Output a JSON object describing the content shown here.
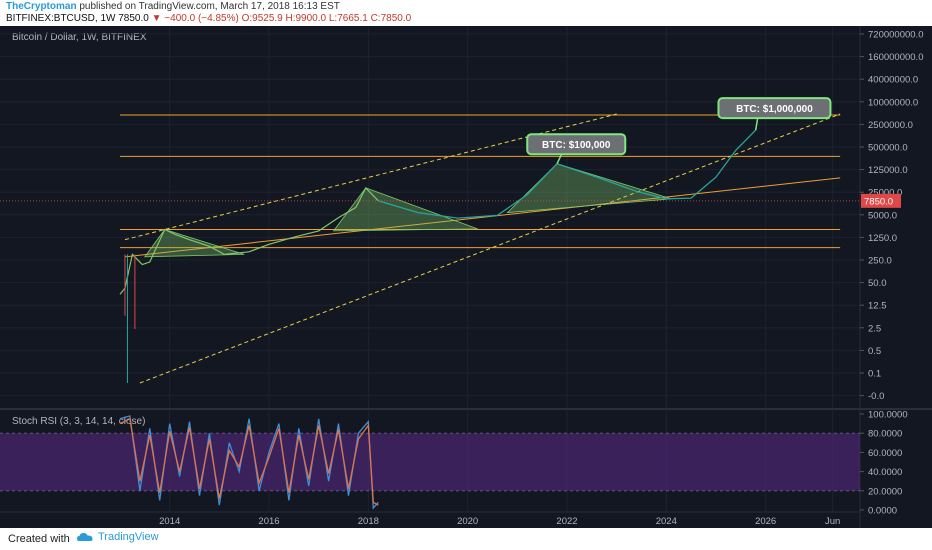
{
  "header": {
    "author": "TheCryptoman",
    "published": "published on TradingView.com, March 17, 2018 16:13 EST",
    "symbol": "BITFINEX:BTCUSD, 1W",
    "last": "7850.0",
    "change": "−400.0 (−4.85%)",
    "ohlc": "O:9525.9 H:9900.0 L:7665.1 C:7850.0"
  },
  "footer": {
    "created_with": "Created with",
    "brand": "TradingView"
  },
  "colors": {
    "background": "#131722",
    "price_line": "#26a69a",
    "projection": "#26a69a",
    "resistance": "#f0a030",
    "trendline": "#f0a030",
    "channel": "#e8d048",
    "fill": "#7ec86a",
    "stoch_k": "#3f8fd8",
    "stoch_d": "#e0734a",
    "stoch_band": "#5b2a87",
    "price_label": "#e04848"
  },
  "chart_data": [
    {
      "type": "line",
      "title": "Bitcoin / Dollar, 1W, BITFINEX",
      "current_price_label": "7850.0",
      "y_scale": "log",
      "y_tick_labels": [
        "720000000.0",
        "160000000.0",
        "40000000.0",
        "10000000.0",
        "2500000.0",
        "500000.0",
        "125000.0",
        "25000.0",
        "5000.0",
        "1250.0",
        "250.0",
        "50.0",
        "12.5",
        "2.5",
        "0.5",
        "0.1",
        "-0.0"
      ],
      "x_tick_labels": [
        "2014",
        "2016",
        "2018",
        "2020",
        "2022",
        "2024",
        "2026",
        "Jun"
      ],
      "annotations": [
        "BTC: $100,000",
        "BTC: $1,000,000"
      ],
      "series": [
        {
          "role": "price",
          "x": [
            2013.0,
            2013.1,
            2013.25,
            2013.45,
            2013.6,
            2013.9,
            2014.1,
            2014.4,
            2014.8,
            2015.1,
            2015.6,
            2016.0,
            2016.5,
            2017.0,
            2017.4,
            2017.75,
            2017.95,
            2018.2
          ],
          "y": [
            13,
            20,
            200,
            100,
            120,
            1100,
            800,
            550,
            350,
            200,
            240,
            400,
            650,
            1000,
            2500,
            5000,
            19000,
            7850
          ]
        },
        {
          "role": "projection",
          "x": [
            2018.2,
            2019.0,
            2019.8,
            2020.6,
            2021.2,
            2021.8,
            2022.6,
            2023.4,
            2024.0,
            2024.5,
            2025.0,
            2025.4,
            2025.8
          ],
          "y": [
            7850,
            3500,
            2400,
            2900,
            12000,
            100000,
            40000,
            15000,
            9000,
            9500,
            40000,
            250000,
            1000000
          ]
        }
      ],
      "horizontal_levels": [
        2800000,
        165000,
        1100,
        320
      ],
      "resistance_lines": [
        {
          "x": [
            2013.1,
            2027.5
          ],
          "y": [
            170,
            38000
          ]
        }
      ],
      "channel_lines": [
        {
          "x": [
            2013.1,
            2023.0
          ],
          "y": [
            550,
            3000000
          ]
        },
        {
          "x": [
            2013.4,
            2027.5
          ],
          "y": [
            0.03,
            3000000
          ]
        }
      ]
    },
    {
      "type": "line",
      "title": "Stoch RSI (3, 3, 14, 14, close)",
      "y_tick_labels": [
        "100.0000",
        "80.0000",
        "60.0000",
        "40.0000",
        "20.0000",
        "0.0000"
      ],
      "ylim": [
        0,
        100
      ],
      "band": [
        20,
        80
      ],
      "series": [
        {
          "role": "k",
          "x": [
            2013.0,
            2013.2,
            2013.4,
            2013.6,
            2013.8,
            2014.0,
            2014.2,
            2014.4,
            2014.6,
            2014.8,
            2015.0,
            2015.2,
            2015.4,
            2015.6,
            2015.8,
            2016.0,
            2016.2,
            2016.4,
            2016.6,
            2016.8,
            2017.0,
            2017.2,
            2017.4,
            2017.6,
            2017.8,
            2018.0,
            2018.1,
            2018.2
          ],
          "y": [
            95,
            98,
            20,
            85,
            10,
            90,
            35,
            92,
            15,
            80,
            5,
            70,
            40,
            95,
            20,
            60,
            90,
            10,
            85,
            25,
            95,
            30,
            90,
            15,
            80,
            92,
            2,
            8
          ]
        },
        {
          "role": "d",
          "x": [
            2013.0,
            2013.2,
            2013.4,
            2013.6,
            2013.8,
            2014.0,
            2014.2,
            2014.4,
            2014.6,
            2014.8,
            2015.0,
            2015.2,
            2015.4,
            2015.6,
            2015.8,
            2016.0,
            2016.2,
            2016.4,
            2016.6,
            2016.8,
            2017.0,
            2017.2,
            2017.4,
            2017.6,
            2017.8,
            2018.0,
            2018.1,
            2018.2
          ],
          "y": [
            90,
            95,
            30,
            78,
            18,
            82,
            40,
            86,
            22,
            74,
            12,
            62,
            45,
            88,
            28,
            55,
            85,
            18,
            78,
            32,
            88,
            38,
            84,
            22,
            74,
            88,
            8,
            5
          ]
        }
      ]
    }
  ]
}
